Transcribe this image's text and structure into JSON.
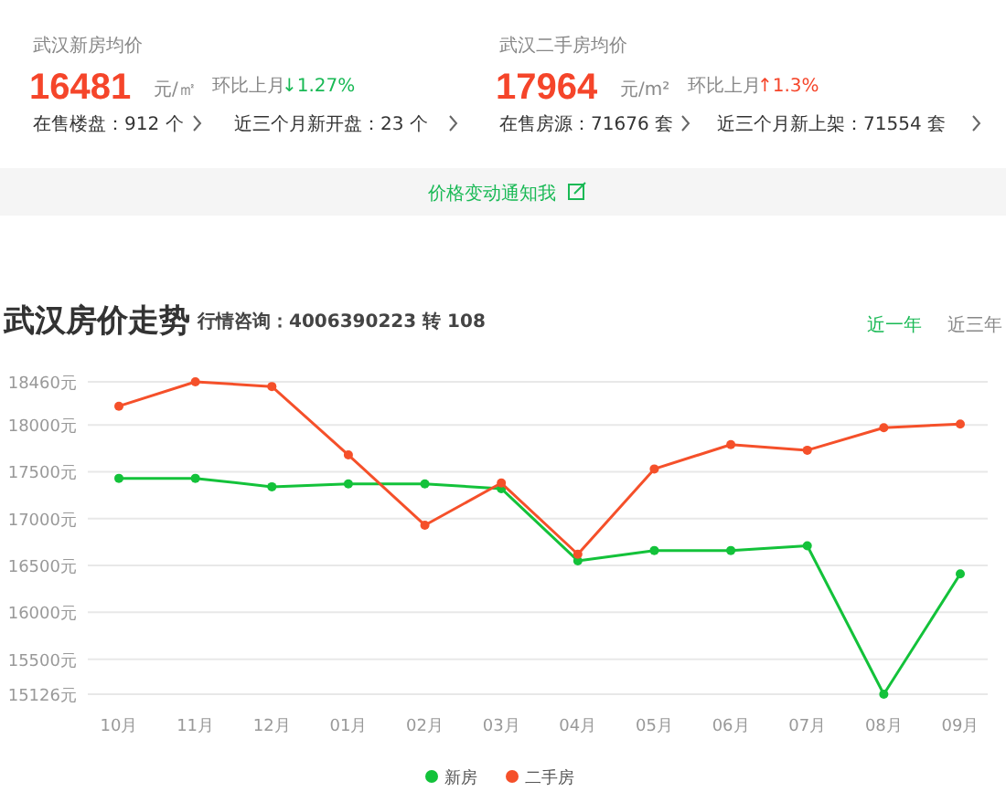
{
  "chart_data": {
    "type": "line",
    "title": "武汉房价走势",
    "subtitle": "行情咨询：4006390223 转 108",
    "annotations": [
      "武汉新房均价",
      "16481",
      "元/㎡",
      "环比上月",
      "↓1.27%",
      "在售楼盘：912 个",
      "近三个月新开盘：23 个",
      "武汉二手房均价",
      "17964",
      "元/m²",
      "环比上月",
      "↑1.3%",
      "在售房源：71676 套",
      "近三个月新上架：71554 套",
      "价格变动通知我",
      "近一年",
      "近三年"
    ],
    "categories": [
      "10月",
      "11月",
      "12月",
      "01月",
      "02月",
      "03月",
      "04月",
      "05月",
      "06月",
      "07月",
      "08月",
      "09月"
    ],
    "series": [
      {
        "name": "新房",
        "color": "#13c23a",
        "values": [
          17430,
          17430,
          17340,
          17370,
          17370,
          17320,
          16550,
          16660,
          16660,
          16710,
          15126,
          16410
        ]
      },
      {
        "name": "二手房",
        "color": "#f5502a",
        "values": [
          18200,
          18460,
          18410,
          17680,
          16930,
          17380,
          16620,
          17530,
          17790,
          17730,
          17970,
          18010
        ]
      }
    ],
    "ylim": [
      15126,
      18460
    ],
    "yticks": [
      {
        "value": 15126,
        "label": "15126元"
      },
      {
        "value": 15500,
        "label": "15500元"
      },
      {
        "value": 16000,
        "label": "16000元"
      },
      {
        "value": 16500,
        "label": "16500元"
      },
      {
        "value": 17000,
        "label": "17000元"
      },
      {
        "value": 17500,
        "label": "17500元"
      },
      {
        "value": 18000,
        "label": "18000元"
      },
      {
        "value": 18460,
        "label": "18460元"
      }
    ],
    "grid": "y",
    "marker": "circle",
    "legend": "bottom"
  }
}
